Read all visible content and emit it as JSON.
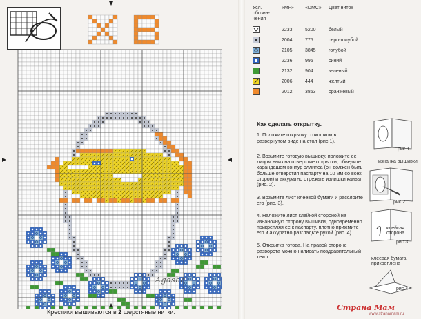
{
  "legend": {
    "headers": {
      "symbol": "Усл. обозна-чения",
      "mf": "«MF»",
      "dmc": "«DMC»",
      "color": "Цвет ниток"
    },
    "rows": [
      {
        "mf": "2233",
        "dmc": "5200",
        "name": "белый",
        "color": "#ffffff",
        "symbol": "check-icon"
      },
      {
        "mf": "2004",
        "dmc": "775",
        "name": "серо-голубой",
        "color": "#c7ccd8",
        "symbol": "square-icon"
      },
      {
        "mf": "2105",
        "dmc": "3845",
        "name": "голубой",
        "color": "#7fb2de",
        "symbol": "dot-icon"
      },
      {
        "mf": "2236",
        "dmc": "995",
        "name": "синий",
        "color": "#2f64c0",
        "symbol": "cross-icon"
      },
      {
        "mf": "2132",
        "dmc": "904",
        "name": "зеленый",
        "color": "#3f9a35",
        "symbol": "plain-icon"
      },
      {
        "mf": "2006",
        "dmc": "444",
        "name": "желтый",
        "color": "#f3d823",
        "symbol": "slash-icon"
      },
      {
        "mf": "2012",
        "dmc": "3853",
        "name": "оранжевый",
        "color": "#f08a2c",
        "symbol": "plain-icon"
      }
    ]
  },
  "howto": {
    "title": "Как сделать открытку.",
    "steps": [
      "1. Положите открытку с окошком в развернутом виде на стол (рис.1).",
      "2. Возьмите готовую вышивку, положите ее лицом вниз на отверстие открытки, обведите карандашом контур эллипса (он должен быть больше отверстия паспарту на 10 мм со всех сторон) и аккуратно отрежьте излишки канвы (рис. 2).",
      "3. Возьмите лист клеевой бумаги и расслоите его (рис. 3).",
      "4. Наложите лист клейкой стороной на изнаночную сторону вышивки, одновременно прикрепляя ее к паспарту, плотно прижмите его и аккуратно разгладьте рукой (рис. 4).",
      "5. Открытка готова. На правой стороне разворота можно написать поздравительный текст."
    ]
  },
  "figures": [
    {
      "label": "рис.1"
    },
    {
      "label": "рис.2",
      "note": "изнанка вышивки"
    },
    {
      "label": "рис.3",
      "note": "клейкая сторона"
    },
    {
      "label": "рис.4",
      "note": "клеевая бумага прикреплена"
    }
  ],
  "chart_title": "ХВ",
  "signature": "Agasha",
  "footnote": {
    "prefix": "Крестики вышиваются в ",
    "bold": "2",
    "suffix": " шерстяные нитки."
  },
  "watermark": {
    "brand": "Страна Мам",
    "url": "www.stranamam.ru"
  }
}
